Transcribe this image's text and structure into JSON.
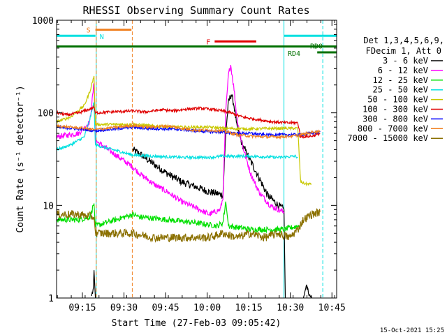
{
  "chart_data": {
    "type": "line",
    "title": "RHESSI Observing Summary Count Rates",
    "xlabel": "Start Time (27-Feb-03 09:05:42)",
    "ylabel": "Count Rate (s⁻¹ detector⁻¹)",
    "yscale": "log",
    "ylim": [
      1,
      1000
    ],
    "xlim_minutes": [
      0,
      101
    ],
    "y_ticks": [
      {
        "value": 1,
        "label": "1"
      },
      {
        "value": 10,
        "label": "10"
      },
      {
        "value": 100,
        "label": "100"
      },
      {
        "value": 1000,
        "label": "1000"
      }
    ],
    "x_ticks": [
      {
        "minute": 9.3,
        "label": "09:15"
      },
      {
        "minute": 24.3,
        "label": "09:30"
      },
      {
        "minute": 39.3,
        "label": "09:45"
      },
      {
        "minute": 54.3,
        "label": "10:00"
      },
      {
        "minute": 69.3,
        "label": "10:15"
      },
      {
        "minute": 84.3,
        "label": "10:30"
      },
      {
        "minute": 99.3,
        "label": "10:45"
      }
    ],
    "legend": {
      "placement": "right",
      "header": [
        "Det 1,3,4,5,6,9,",
        "FDecim 1, Att 0"
      ]
    },
    "flag_bars": [
      {
        "label": "S",
        "color": "#f08020",
        "start": 14,
        "end": 27,
        "level": 790
      },
      {
        "label": "N",
        "color": "#00e0e0",
        "start": 0,
        "end": 14,
        "level": 680
      },
      {
        "label": "N",
        "color": "#00e0e0",
        "start": 82,
        "end": 101,
        "level": 680
      },
      {
        "label": "F",
        "color": "#e00000",
        "start": 57,
        "end": 72,
        "level": 590
      },
      {
        "label": "RD0",
        "color": "#007000",
        "start": 0,
        "end": 101,
        "level": 520
      },
      {
        "label": "RD4",
        "color": "#007000",
        "start": 94,
        "end": 101,
        "level": 450
      }
    ],
    "vertical_markers": [
      {
        "minute": 14.3,
        "color": "#00e0e0",
        "style": "solid"
      },
      {
        "minute": 14.3,
        "color": "#f08020",
        "style": "dashed"
      },
      {
        "minute": 27.3,
        "color": "#f08020",
        "style": "dashed"
      },
      {
        "minute": 82.0,
        "color": "#00e0e0",
        "style": "solid"
      },
      {
        "minute": 96.0,
        "color": "#00e0e0",
        "style": "dashed"
      }
    ],
    "series": [
      {
        "name": "3 - 6 keV",
        "color": "#000000",
        "points": [
          [
            27.5,
            40
          ],
          [
            30,
            36
          ],
          [
            35,
            28
          ],
          [
            40,
            22
          ],
          [
            45,
            18
          ],
          [
            50,
            16
          ],
          [
            55,
            14
          ],
          [
            60,
            13
          ],
          [
            61,
            60
          ],
          [
            62,
            130
          ],
          [
            63,
            160
          ],
          [
            64,
            120
          ],
          [
            65,
            70
          ],
          [
            67,
            45
          ],
          [
            70,
            30
          ],
          [
            73,
            20
          ],
          [
            76,
            13
          ],
          [
            80,
            10
          ],
          [
            82,
            9
          ],
          [
            82.5,
            1
          ]
        ]
      },
      {
        "name": "6 - 12 keV",
        "color": "#ff00ff",
        "points": [
          [
            0,
            55
          ],
          [
            8,
            60
          ],
          [
            12,
            80
          ],
          [
            13.5,
            210
          ],
          [
            14,
            50
          ],
          [
            27.5,
            26
          ],
          [
            30,
            22
          ],
          [
            35,
            17
          ],
          [
            40,
            14
          ],
          [
            45,
            11
          ],
          [
            50,
            9.5
          ],
          [
            55,
            8
          ],
          [
            59,
            9
          ],
          [
            60,
            12
          ],
          [
            61,
            100
          ],
          [
            62,
            260
          ],
          [
            62.8,
            330
          ],
          [
            64,
            180
          ],
          [
            65,
            90
          ],
          [
            67,
            45
          ],
          [
            70,
            22
          ],
          [
            73,
            14
          ],
          [
            77,
            10
          ],
          [
            80,
            9
          ],
          [
            82,
            8.5
          ]
        ]
      },
      {
        "name": "12 - 25 keV",
        "color": "#00e000",
        "points": [
          [
            0,
            7
          ],
          [
            8,
            7
          ],
          [
            12,
            7.5
          ],
          [
            13.5,
            10.5
          ],
          [
            14,
            6
          ],
          [
            27.5,
            8
          ],
          [
            30,
            7.5
          ],
          [
            40,
            7
          ],
          [
            50,
            6.5
          ],
          [
            58,
            6
          ],
          [
            60,
            6.5
          ],
          [
            61,
            11
          ],
          [
            61.5,
            8
          ],
          [
            62,
            6
          ],
          [
            70,
            5.5
          ],
          [
            80,
            5.5
          ],
          [
            82,
            5.5
          ],
          [
            87,
            6
          ],
          [
            88,
            6
          ]
        ]
      },
      {
        "name": "25 - 50 keV",
        "color": "#00e0e0",
        "points": [
          [
            0,
            40
          ],
          [
            5,
            45
          ],
          [
            10,
            55
          ],
          [
            12,
            85
          ],
          [
            13.5,
            130
          ],
          [
            14,
            45
          ],
          [
            27.5,
            35
          ],
          [
            35,
            34
          ],
          [
            45,
            33
          ],
          [
            55,
            33
          ],
          [
            60,
            34
          ],
          [
            70,
            34
          ],
          [
            80,
            33
          ],
          [
            86,
            34
          ],
          [
            87,
            33
          ]
        ]
      },
      {
        "name": "50 - 100 keV",
        "color": "#c8c800",
        "points": [
          [
            0,
            80
          ],
          [
            5,
            90
          ],
          [
            10,
            120
          ],
          [
            12,
            170
          ],
          [
            13.5,
            250
          ],
          [
            14,
            75
          ],
          [
            27.5,
            75
          ],
          [
            35,
            72
          ],
          [
            45,
            70
          ],
          [
            55,
            70
          ],
          [
            60,
            68
          ],
          [
            70,
            67
          ],
          [
            80,
            68
          ],
          [
            87,
            68
          ],
          [
            88,
            18
          ],
          [
            90,
            17
          ],
          [
            92,
            17
          ]
        ]
      },
      {
        "name": "100 - 300 keV",
        "color": "#e00000",
        "points": [
          [
            0,
            100
          ],
          [
            4,
            95
          ],
          [
            8,
            100
          ],
          [
            12,
            110
          ],
          [
            13.5,
            115
          ],
          [
            14,
            100
          ],
          [
            27.5,
            105
          ],
          [
            32,
            102
          ],
          [
            38,
            108
          ],
          [
            42,
            105
          ],
          [
            47,
            110
          ],
          [
            52,
            112
          ],
          [
            57,
            108
          ],
          [
            62,
            102
          ],
          [
            67,
            90
          ],
          [
            72,
            85
          ],
          [
            78,
            80
          ],
          [
            83,
            78
          ],
          [
            87,
            78
          ],
          [
            88,
            55
          ],
          [
            92,
            56
          ],
          [
            95,
            60
          ]
        ]
      },
      {
        "name": "300 - 800 keV",
        "color": "#0000ff",
        "points": [
          [
            0,
            70
          ],
          [
            5,
            68
          ],
          [
            10,
            66
          ],
          [
            13.5,
            64
          ],
          [
            14,
            64
          ],
          [
            27.5,
            70
          ],
          [
            32,
            68
          ],
          [
            40,
            67
          ],
          [
            45,
            66
          ],
          [
            50,
            64
          ],
          [
            57,
            62
          ],
          [
            60,
            62
          ],
          [
            65,
            60
          ],
          [
            70,
            60
          ],
          [
            75,
            58
          ],
          [
            80,
            58
          ],
          [
            85,
            58
          ],
          [
            87,
            58
          ],
          [
            88,
            58
          ],
          [
            95,
            62
          ]
        ]
      },
      {
        "name": "800 - 7000 keV",
        "color": "#f08020",
        "points": [
          [
            0,
            72
          ],
          [
            5,
            70
          ],
          [
            10,
            68
          ],
          [
            13.5,
            66
          ],
          [
            14,
            66
          ],
          [
            27.5,
            73
          ],
          [
            33,
            70
          ],
          [
            40,
            72
          ],
          [
            45,
            68
          ],
          [
            50,
            65
          ],
          [
            55,
            65
          ],
          [
            60,
            64
          ],
          [
            65,
            58
          ],
          [
            70,
            56
          ],
          [
            75,
            55
          ],
          [
            80,
            55
          ],
          [
            85,
            56
          ],
          [
            87,
            57
          ],
          [
            88,
            58
          ],
          [
            95,
            64
          ]
        ]
      },
      {
        "name": "7000 - 15000 keV",
        "color": "#8b7000",
        "points": [
          [
            0,
            8
          ],
          [
            8,
            8
          ],
          [
            13.5,
            7.5
          ],
          [
            14,
            5
          ],
          [
            27.5,
            5
          ],
          [
            35,
            4.5
          ],
          [
            45,
            4.5
          ],
          [
            55,
            4.5
          ],
          [
            60,
            5
          ],
          [
            65,
            4.5
          ],
          [
            70,
            5
          ],
          [
            75,
            4.5
          ],
          [
            80,
            5
          ],
          [
            84,
            4.5
          ],
          [
            87,
            5.5
          ],
          [
            89,
            7
          ],
          [
            92,
            8
          ],
          [
            95,
            8.5
          ]
        ]
      }
    ],
    "rates_extra": [
      {
        "name": "3 - 6 keV early",
        "color": "#000000",
        "points": [
          [
            12.5,
            1
          ],
          [
            13.3,
            1.3
          ],
          [
            13.5,
            2
          ],
          [
            14,
            1
          ]
        ]
      },
      {
        "name": "3 - 6 keV late",
        "color": "#000000",
        "points": [
          [
            89,
            1
          ],
          [
            90,
            1.4
          ],
          [
            91,
            1.1
          ],
          [
            92,
            1
          ]
        ]
      }
    ],
    "footer_timestamp": "15-Oct-2021 15:25"
  }
}
